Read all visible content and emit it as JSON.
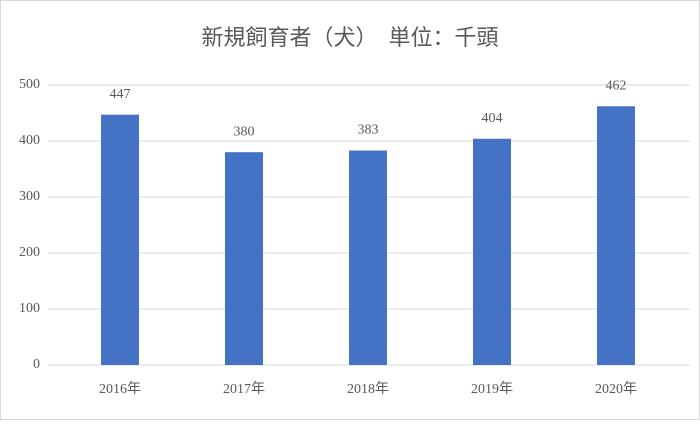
{
  "chart_data": {
    "type": "bar",
    "title": "新規飼育者（犬）　単位：千頭",
    "categories": [
      "2016年",
      "2017年",
      "2018年",
      "2019年",
      "2020年"
    ],
    "values": [
      447,
      380,
      383,
      404,
      462
    ],
    "color": "#4472c4",
    "ylim": [
      0,
      500
    ],
    "yticks": [
      0,
      100,
      200,
      300,
      400,
      500
    ],
    "grid": true
  }
}
